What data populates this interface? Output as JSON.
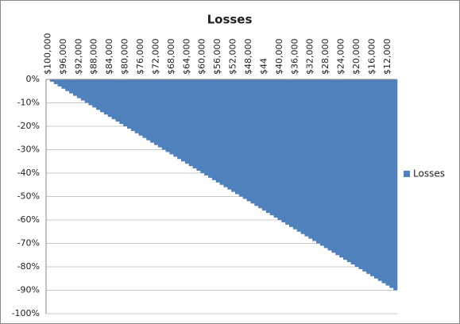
{
  "chart_data": {
    "type": "bar",
    "title": "Losses",
    "categories": [
      "$100,000",
      null,
      null,
      null,
      "$96,000",
      null,
      null,
      null,
      "$92,000",
      null,
      null,
      null,
      "$88,000",
      null,
      null,
      null,
      "$84,000",
      null,
      null,
      null,
      "$80,000",
      null,
      null,
      null,
      "$76,000",
      null,
      null,
      null,
      "$72,000",
      null,
      null,
      null,
      "$68,000",
      null,
      null,
      null,
      "$64,000",
      null,
      null,
      null,
      "$60,000",
      null,
      null,
      null,
      "$56,000",
      null,
      null,
      null,
      "$52,000",
      null,
      null,
      null,
      "$48,000",
      null,
      null,
      null,
      "$44",
      null,
      null,
      null,
      "$40,000",
      null,
      null,
      null,
      "$36,000",
      null,
      null,
      null,
      "$32,000",
      null,
      null,
      null,
      "$28,000",
      null,
      null,
      null,
      "$24,000",
      null,
      null,
      null,
      "$20,000",
      null,
      null,
      null,
      "$16,000",
      null,
      null,
      null,
      "$12,000",
      null,
      null
    ],
    "series": [
      {
        "name": "Losses",
        "color": "#4f81bd",
        "values": [
          0,
          -1,
          -2,
          -3,
          -4,
          -5,
          -6,
          -7,
          -8,
          -9,
          -10,
          -11,
          -12,
          -13,
          -14,
          -15,
          -16,
          -17,
          -18,
          -19,
          -20,
          -21,
          -22,
          -23,
          -24,
          -25,
          -26,
          -27,
          -28,
          -29,
          -30,
          -31,
          -32,
          -33,
          -34,
          -35,
          -36,
          -37,
          -38,
          -39,
          -40,
          -41,
          -42,
          -43,
          -44,
          -45,
          -46,
          -47,
          -48,
          -49,
          -50,
          -51,
          -52,
          -53,
          -54,
          -55,
          -56,
          -57,
          -58,
          -59,
          -60,
          -61,
          -62,
          -63,
          -64,
          -65,
          -66,
          -67,
          -68,
          -69,
          -70,
          -71,
          -72,
          -73,
          -74,
          -75,
          -76,
          -77,
          -78,
          -79,
          -80,
          -81,
          -82,
          -83,
          -84,
          -85,
          -86,
          -87,
          -88,
          -89,
          -90
        ]
      }
    ],
    "ylim": [
      -100,
      0
    ],
    "yticks": [
      {
        "value": 0,
        "label": "0%"
      },
      {
        "value": -10,
        "label": "-10%"
      },
      {
        "value": -20,
        "label": "-20%"
      },
      {
        "value": -30,
        "label": "-30%"
      },
      {
        "value": -40,
        "label": "-40%"
      },
      {
        "value": -50,
        "label": "-50%"
      },
      {
        "value": -60,
        "label": "-60%"
      },
      {
        "value": -70,
        "label": "-70%"
      },
      {
        "value": -80,
        "label": "-80%"
      },
      {
        "value": -90,
        "label": "-90%"
      },
      {
        "value": -100,
        "label": "-100%"
      }
    ],
    "grid": true,
    "legend": "right"
  }
}
